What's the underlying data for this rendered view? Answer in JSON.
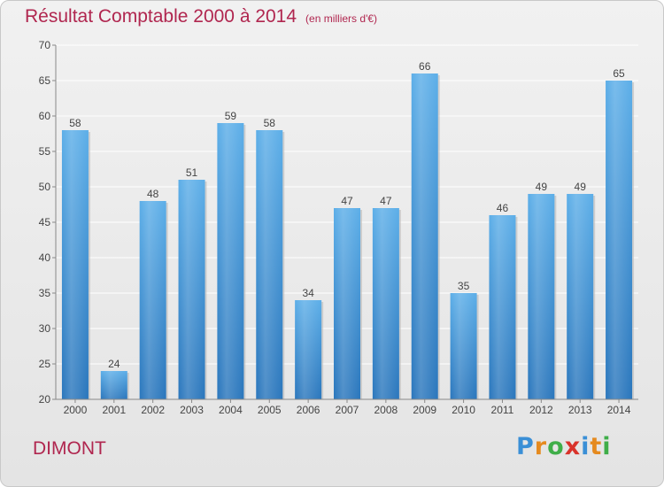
{
  "chart_data": {
    "type": "bar",
    "title": "Résultat Comptable 2000 à 2014",
    "subtitle": "(en milliers d'€)",
    "categories": [
      "2000",
      "2001",
      "2002",
      "2003",
      "2004",
      "2005",
      "2006",
      "2007",
      "2008",
      "2009",
      "2010",
      "2011",
      "2012",
      "2013",
      "2014"
    ],
    "values": [
      58,
      24,
      48,
      51,
      59,
      58,
      34,
      47,
      47,
      66,
      35,
      46,
      49,
      49,
      65
    ],
    "ylim": [
      20,
      70
    ],
    "yticks": [
      20,
      25,
      30,
      35,
      40,
      45,
      50,
      55,
      60,
      65,
      70
    ],
    "grid": true,
    "bar_color": "#3a8fd6"
  },
  "footer": {
    "place": "DIMONT",
    "logo_letters": [
      "P",
      "r",
      "o",
      "x",
      "i",
      "t",
      "i"
    ],
    "logo_colors": [
      "#3a8fd6",
      "#e58a1f",
      "#3fae49",
      "#d9332b",
      "#3a8fd6",
      "#e58a1f",
      "#3fae49"
    ]
  }
}
